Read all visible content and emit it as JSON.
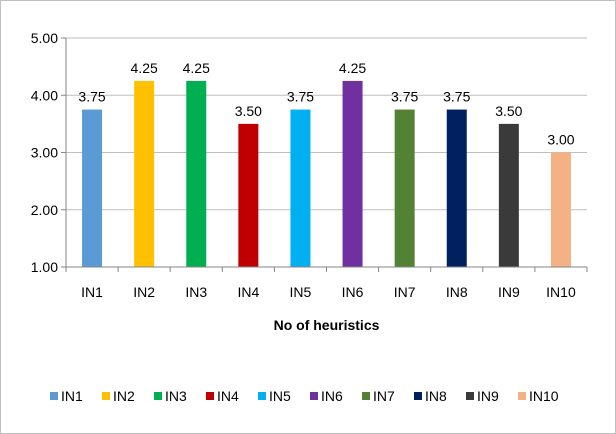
{
  "chart_data": {
    "type": "bar",
    "title": "",
    "xlabel": "No of heuristics",
    "ylabel": "",
    "categories": [
      "IN1",
      "IN2",
      "IN3",
      "IN4",
      "IN5",
      "IN6",
      "IN7",
      "IN8",
      "IN9",
      "IN10"
    ],
    "values": [
      3.75,
      4.25,
      4.25,
      3.5,
      3.75,
      4.25,
      3.75,
      3.75,
      3.5,
      3.0
    ],
    "value_labels": [
      "3.75",
      "4.25",
      "4.25",
      "3.50",
      "3.75",
      "4.25",
      "3.75",
      "3.75",
      "3.50",
      "3.00"
    ],
    "colors": [
      "#5b9bd5",
      "#ffc000",
      "#00b050",
      "#c00000",
      "#00b0f0",
      "#7030a0",
      "#548235",
      "#002060",
      "#3a3a3a",
      "#f4b183"
    ],
    "ylim": [
      1.0,
      5.0
    ],
    "yticks": [
      1.0,
      2.0,
      3.0,
      4.0,
      5.0
    ],
    "ytick_labels": [
      "1.00",
      "2.00",
      "3.00",
      "4.00",
      "5.00"
    ],
    "grid": true,
    "legend": {
      "position": "bottom",
      "entries": [
        "IN1",
        "IN2",
        "IN3",
        "IN4",
        "IN5",
        "IN6",
        "IN7",
        "IN8",
        "IN9",
        "IN10"
      ]
    }
  }
}
